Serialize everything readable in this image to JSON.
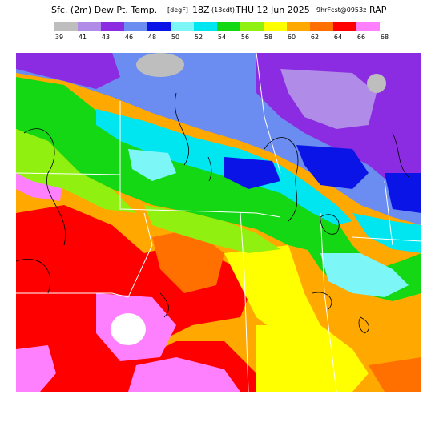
{
  "header": {
    "title_main": "Sfc. (2m) Dew Pt. Temp.",
    "units": "[degF]",
    "valid": "18Z",
    "local": "(13cdt)",
    "date": "THU 12 Jun 2025",
    "hrfcst": "9hrFcst@0953z",
    "model": "RAP"
  },
  "legend": {
    "ticks": [
      "39",
      "41",
      "43",
      "46",
      "48",
      "50",
      "52",
      "54",
      "56",
      "58",
      "60",
      "62",
      "64",
      "66",
      "68"
    ],
    "colors": [
      "#bebebe",
      "#b08be8",
      "#8b2be2",
      "#6b8cf0",
      "#0a14e6",
      "#7cf6f6",
      "#00e6f0",
      "#14d814",
      "#90f010",
      "#ffff00",
      "#ffa800",
      "#ff7000",
      "#ff0000",
      "#ff80ff"
    ]
  }
}
